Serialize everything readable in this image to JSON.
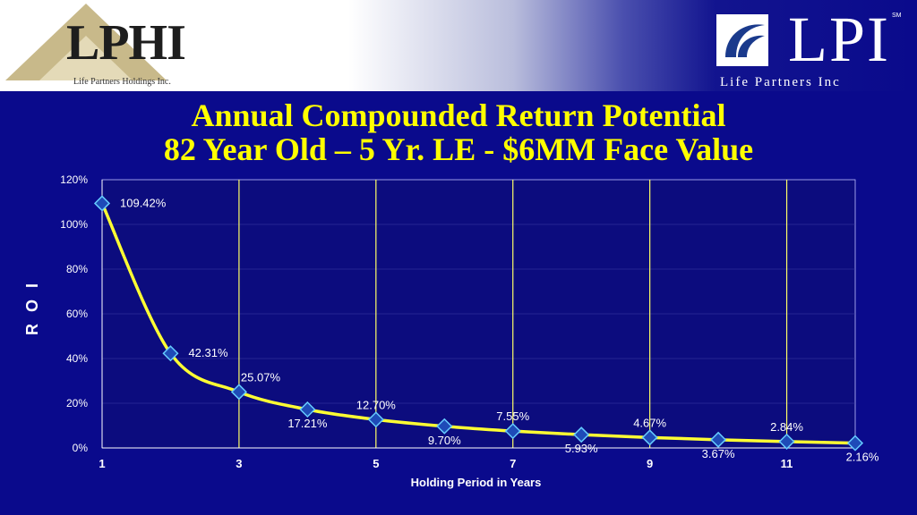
{
  "header": {
    "left_logo": {
      "text": "LPHI",
      "subtitle": "Life Partners Holdings Inc."
    },
    "right_logo": {
      "text": "LPI",
      "subtitle": "Life Partners Inc",
      "trademark": "SM"
    }
  },
  "colors": {
    "background": "#0a0a8c",
    "title": "#ffff00",
    "series_line": "#ffff33",
    "marker_fill": "#1e4bb8",
    "marker_stroke": "#66ccff",
    "gridline": "#ffff66"
  },
  "chart_data": {
    "type": "line",
    "title": "Annual Compounded Return Potential",
    "subtitle": "82 Year Old – 5 Yr. LE - $6MM Face Value",
    "xlabel": "Holding Period in Years",
    "ylabel": "R O I",
    "x_ticks": [
      "1",
      "3",
      "5",
      "7",
      "9",
      "11"
    ],
    "y_ticks": [
      "0%",
      "20%",
      "40%",
      "60%",
      "80%",
      "100%",
      "120%"
    ],
    "xlim": [
      1,
      12
    ],
    "ylim": [
      0,
      120
    ],
    "grid": "vertical",
    "series": [
      {
        "x": [
          1,
          2,
          3,
          4,
          5,
          6,
          7,
          8,
          9,
          10,
          11,
          12
        ],
        "values": [
          109.42,
          42.31,
          25.07,
          17.21,
          12.7,
          9.7,
          7.55,
          5.93,
          4.67,
          3.67,
          2.84,
          2.16
        ],
        "labels": [
          "109.42%",
          "42.31%",
          "25.07%",
          "17.21%",
          "12.70%",
          "9.70%",
          "7.55%",
          "5.93%",
          "4.67%",
          "3.67%",
          "2.84%",
          "2.16%"
        ],
        "label_positions": [
          "right",
          "right",
          "above",
          "below",
          "above",
          "below",
          "above",
          "below",
          "above",
          "below",
          "above",
          "below"
        ]
      }
    ]
  }
}
